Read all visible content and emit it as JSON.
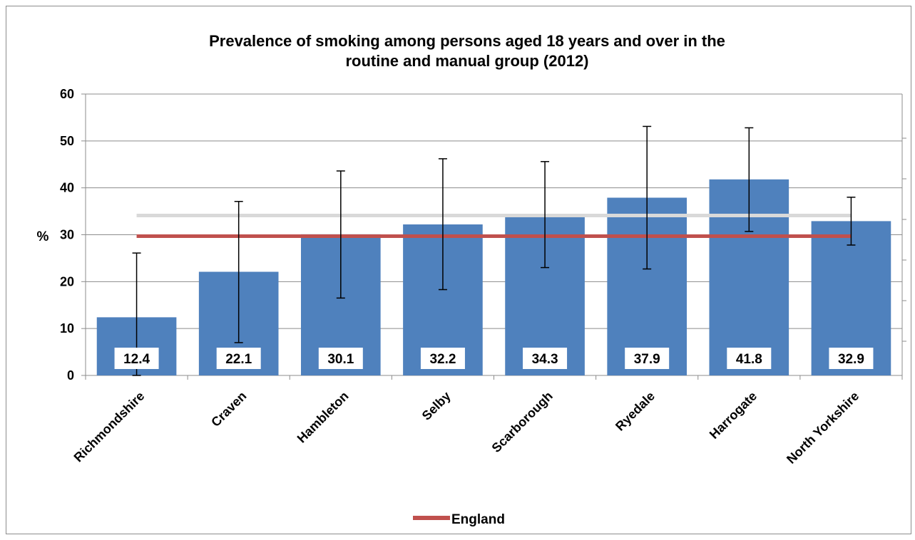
{
  "chart_data": {
    "type": "bar",
    "title_lines": [
      "Prevalence of smoking among persons aged 18 years and over in the",
      "routine and manual group (2012)"
    ],
    "ylabel": "%",
    "xlabel": "",
    "ylim": [
      0,
      60
    ],
    "yticks": [
      0,
      10,
      20,
      30,
      40,
      50,
      60
    ],
    "grid": true,
    "categories": [
      "Richmondshire",
      "Craven",
      "Hambleton",
      "Selby",
      "Scarborough",
      "Ryedale",
      "Harrogate",
      "North Yorkshire"
    ],
    "series": [
      {
        "values": [
          12.4,
          22.1,
          30.1,
          32.2,
          34.3,
          37.9,
          41.8,
          32.9
        ],
        "data_labels": [
          "12.4",
          "22.1",
          "30.1",
          "32.2",
          "34.3",
          "37.9",
          "41.8",
          "32.9"
        ],
        "ci_lower": [
          0,
          7,
          16.5,
          18.3,
          23,
          22.7,
          30.7,
          27.8
        ],
        "ci_upper": [
          26.1,
          37.1,
          43.6,
          46.2,
          45.6,
          53.1,
          52.8,
          38
        ]
      }
    ],
    "reference_lines": [
      {
        "name": "England",
        "value": 29.7,
        "color": "#c0504d",
        "in_legend": true
      },
      {
        "value": 34.1,
        "color": "#d9d9d9",
        "in_legend": false
      }
    ],
    "legend": {
      "placement": "bottom",
      "entries": [
        "England"
      ]
    },
    "colors": {
      "bar": "#4f81bd",
      "england_line": "#c0504d",
      "north_yorkshire_line": "#d9d9d9",
      "error_bar": "#000000",
      "grid": "#8c8c8c"
    }
  }
}
